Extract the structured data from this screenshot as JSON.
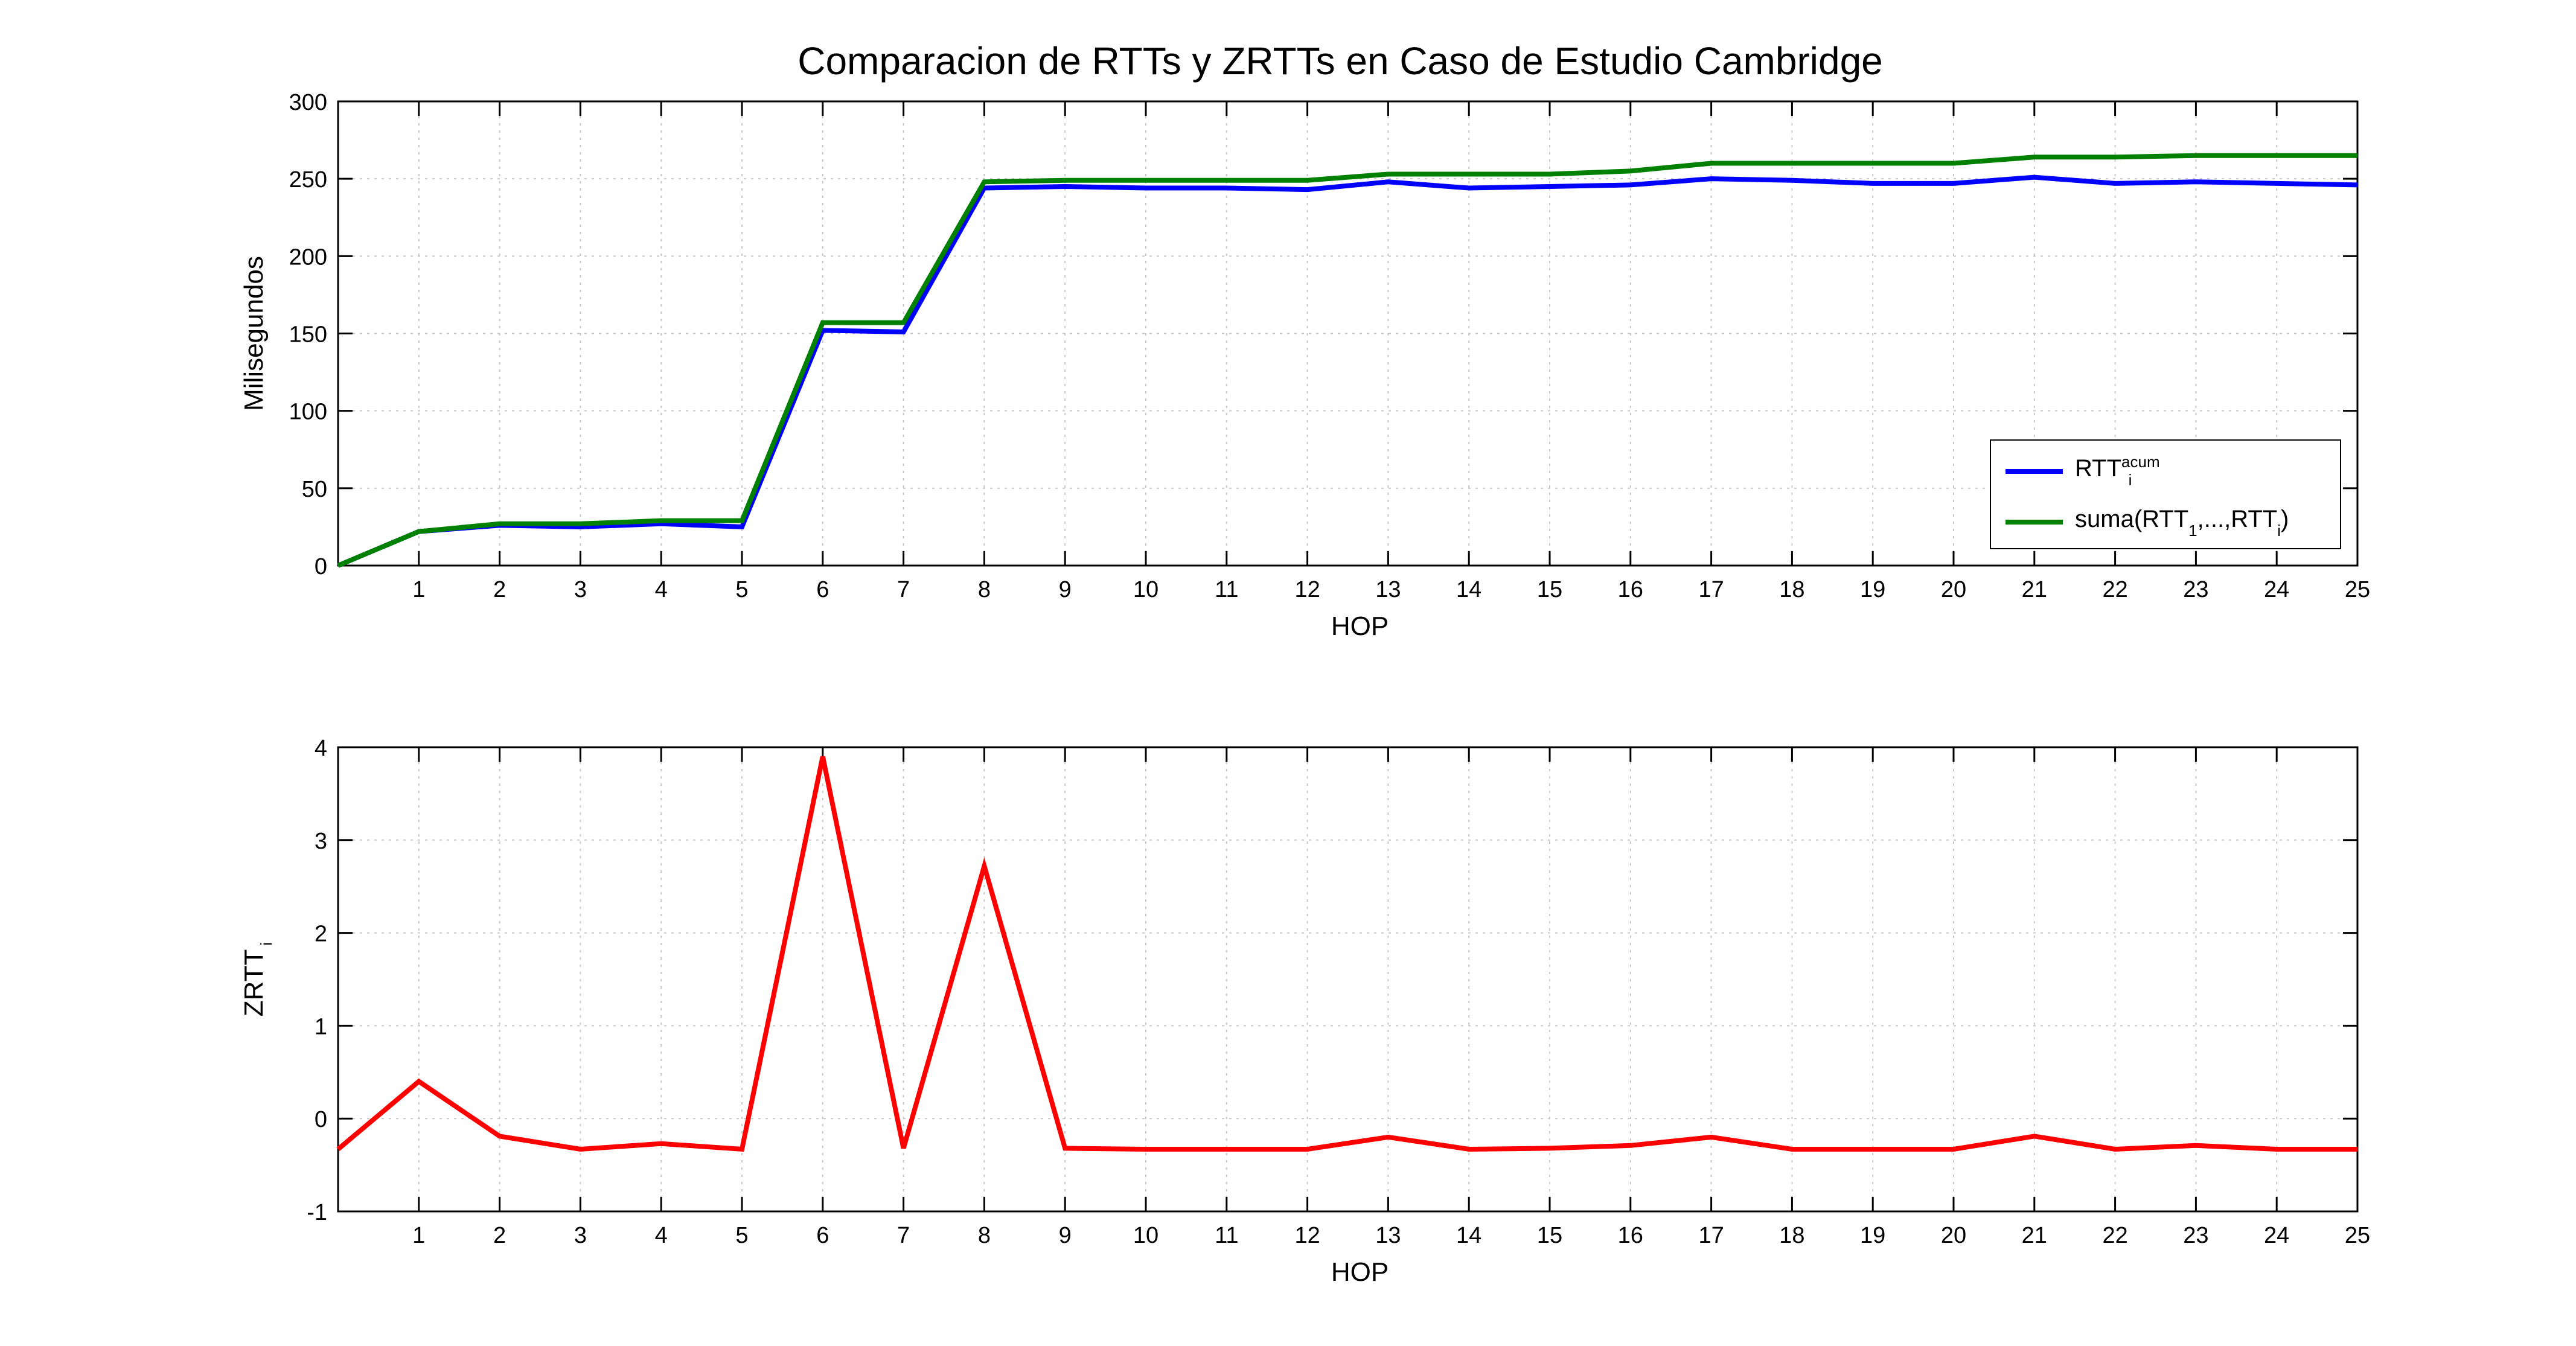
{
  "figure": {
    "title": "Comparacion de RTTs y ZRTTs en Caso de Estudio Cambridge"
  },
  "chart_data": [
    {
      "type": "line",
      "title": "Comparacion de RTTs y ZRTTs en Caso de Estudio Cambridge",
      "xlabel": "HOP",
      "ylabel": "Milisegundos",
      "xlim": [
        0,
        25
      ],
      "ylim": [
        0,
        300
      ],
      "x_ticks": [
        1,
        2,
        3,
        4,
        5,
        6,
        7,
        8,
        9,
        10,
        11,
        12,
        13,
        14,
        15,
        16,
        17,
        18,
        19,
        20,
        21,
        22,
        23,
        24,
        25
      ],
      "y_ticks": [
        0,
        50,
        100,
        150,
        200,
        250,
        300
      ],
      "grid": true,
      "legend_position": "bottom-right",
      "x": [
        0,
        1,
        2,
        3,
        4,
        5,
        6,
        7,
        8,
        9,
        10,
        11,
        12,
        13,
        14,
        15,
        16,
        17,
        18,
        19,
        20,
        21,
        22,
        23,
        24,
        25
      ],
      "series": [
        {
          "name": "RTT_i^acum",
          "legend": {
            "main": "RTT",
            "sub": "i",
            "sup": "acum"
          },
          "color": "#0000ff",
          "values": [
            0,
            22,
            26,
            25,
            27,
            25,
            152,
            151,
            244,
            245,
            244,
            244,
            243,
            248,
            244,
            245,
            246,
            250,
            249,
            247,
            247,
            251,
            247,
            248,
            247,
            246
          ]
        },
        {
          "name": "suma(RTT_1,...,RTT_i)",
          "legend": {
            "prefix": "suma(RTT",
            "sub1": "1",
            "middle": ",...,RTT",
            "sub2": "i",
            "suffix": ")"
          },
          "color": "#008000",
          "values": [
            0,
            22,
            27,
            27,
            29,
            29,
            157,
            157,
            248,
            249,
            249,
            249,
            249,
            253,
            253,
            253,
            255,
            260,
            260,
            260,
            260,
            264,
            264,
            265,
            265,
            265
          ]
        }
      ]
    },
    {
      "type": "line",
      "xlabel": "HOP",
      "ylabel": "ZRTT",
      "ylabel_sub": "i",
      "xlim": [
        0,
        25
      ],
      "ylim": [
        -1,
        4
      ],
      "x_ticks": [
        1,
        2,
        3,
        4,
        5,
        6,
        7,
        8,
        9,
        10,
        11,
        12,
        13,
        14,
        15,
        16,
        17,
        18,
        19,
        20,
        21,
        22,
        23,
        24,
        25
      ],
      "y_ticks": [
        -1,
        0,
        1,
        2,
        3,
        4
      ],
      "grid": true,
      "x": [
        0,
        1,
        2,
        3,
        4,
        5,
        6,
        7,
        8,
        9,
        10,
        11,
        12,
        13,
        14,
        15,
        16,
        17,
        18,
        19,
        20,
        21,
        22,
        23,
        24,
        25
      ],
      "series": [
        {
          "color": "#ff0000",
          "values": [
            -0.33,
            0.4,
            -0.19,
            -0.33,
            -0.27,
            -0.33,
            3.9,
            -0.32,
            2.72,
            -0.32,
            -0.33,
            -0.33,
            -0.33,
            -0.2,
            -0.33,
            -0.32,
            -0.29,
            -0.2,
            -0.33,
            -0.33,
            -0.33,
            -0.19,
            -0.33,
            -0.29,
            -0.33,
            -0.33
          ]
        }
      ]
    }
  ]
}
